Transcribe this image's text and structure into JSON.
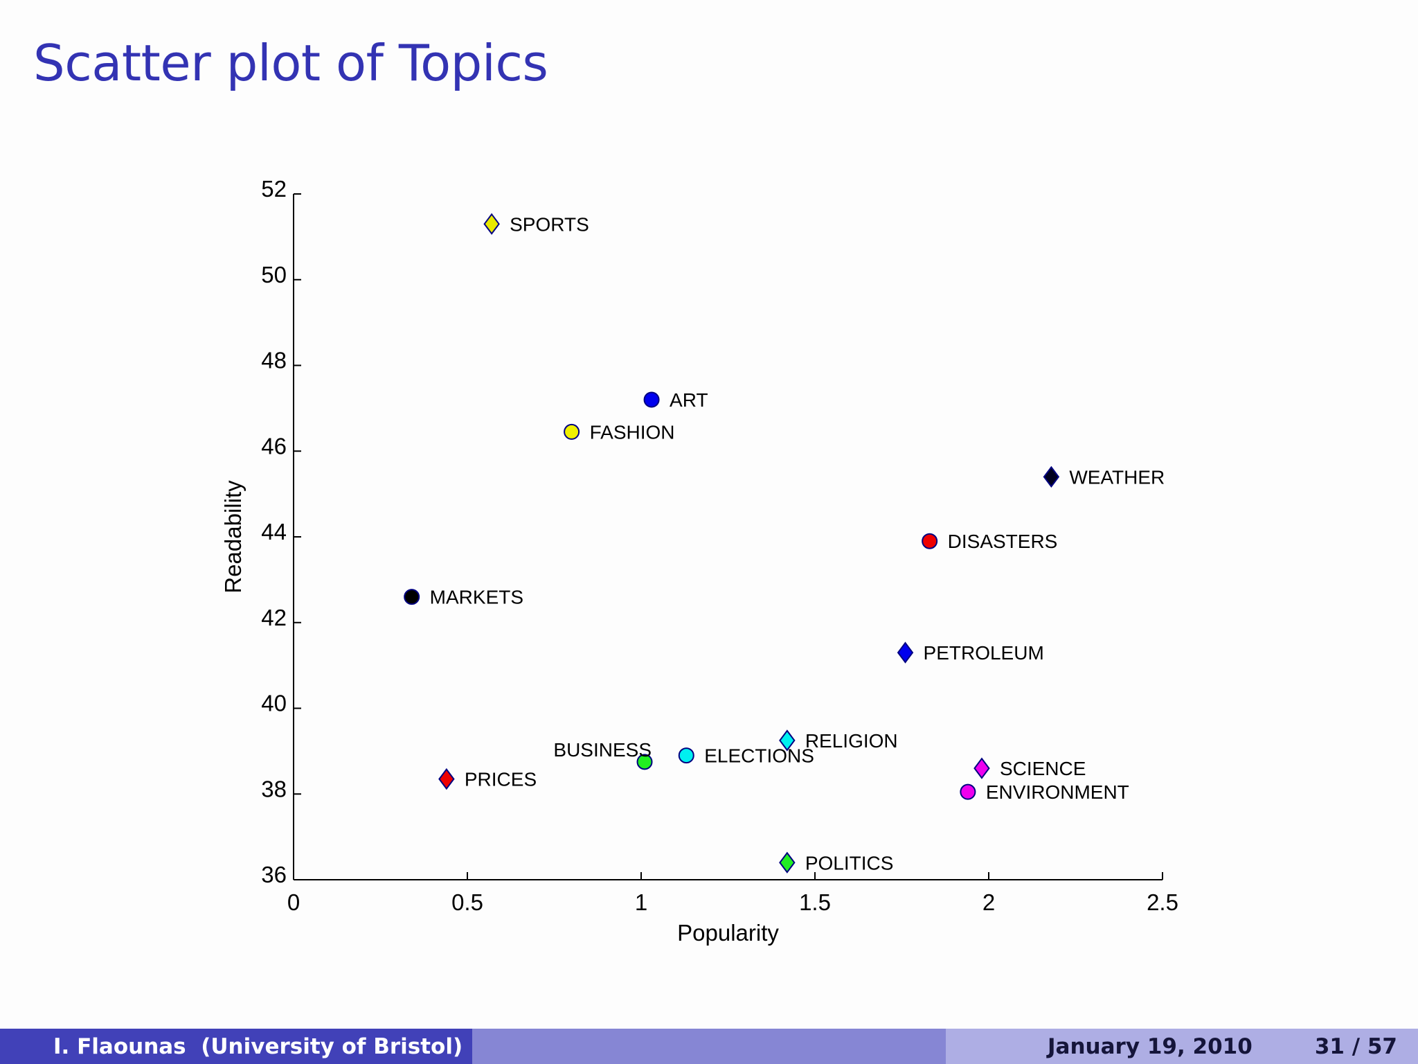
{
  "slide": {
    "title": "Scatter plot of Topics"
  },
  "footer": {
    "author": "I. Flaounas  (University of Bristol)",
    "date": "January 19, 2010",
    "page": "31 / 57"
  },
  "chart_data": {
    "type": "scatter",
    "title": "",
    "xlabel": "Popularity",
    "ylabel": "Readability",
    "xlim": [
      0,
      2.5
    ],
    "ylim": [
      36,
      52
    ],
    "xticks": [
      0,
      0.5,
      1,
      1.5,
      2,
      2.5
    ],
    "xtick_labels": [
      "0",
      "0.5",
      "1",
      "1.5",
      "2",
      "2.5"
    ],
    "yticks": [
      36,
      38,
      40,
      42,
      44,
      46,
      48,
      50,
      52
    ],
    "ytick_labels": [
      "36",
      "38",
      "40",
      "42",
      "44",
      "46",
      "48",
      "50",
      "52"
    ],
    "grid": false,
    "points": [
      {
        "label": "SPORTS",
        "x": 0.57,
        "y": 51.3,
        "marker": "diamond",
        "color": "#e8e800",
        "label_side": "right"
      },
      {
        "label": "ART",
        "x": 1.03,
        "y": 47.2,
        "marker": "circle",
        "color": "#0000ee",
        "label_side": "right"
      },
      {
        "label": "FASHION",
        "x": 0.8,
        "y": 46.45,
        "marker": "circle",
        "color": "#f0f000",
        "label_side": "right"
      },
      {
        "label": "WEATHER",
        "x": 2.18,
        "y": 45.4,
        "marker": "diamond",
        "color": "#000020",
        "label_side": "right"
      },
      {
        "label": "DISASTERS",
        "x": 1.83,
        "y": 43.9,
        "marker": "circle",
        "color": "#ee0000",
        "label_side": "right"
      },
      {
        "label": "MARKETS",
        "x": 0.34,
        "y": 42.6,
        "marker": "circle",
        "color": "#000000",
        "label_side": "right"
      },
      {
        "label": "PETROLEUM",
        "x": 1.76,
        "y": 41.3,
        "marker": "diamond",
        "color": "#0000ee",
        "label_side": "right"
      },
      {
        "label": "RELIGION",
        "x": 1.42,
        "y": 39.25,
        "marker": "diamond",
        "color": "#00f0f0",
        "label_side": "right"
      },
      {
        "label": "ELECTIONS",
        "x": 1.13,
        "y": 38.9,
        "marker": "circle",
        "color": "#00f0f0",
        "label_side": "right"
      },
      {
        "label": "BUSINESS",
        "x": 1.01,
        "y": 38.75,
        "marker": "circle",
        "color": "#22ee22",
        "label_side": "left"
      },
      {
        "label": "SCIENCE",
        "x": 1.98,
        "y": 38.6,
        "marker": "diamond",
        "color": "#ee00ee",
        "label_side": "right"
      },
      {
        "label": "PRICES",
        "x": 0.44,
        "y": 38.35,
        "marker": "diamond",
        "color": "#ee0000",
        "label_side": "right"
      },
      {
        "label": "ENVIRONMENT",
        "x": 1.94,
        "y": 38.05,
        "marker": "circle",
        "color": "#ee00ee",
        "label_side": "right"
      },
      {
        "label": "POLITICS",
        "x": 1.42,
        "y": 36.4,
        "marker": "diamond",
        "color": "#22ee22",
        "label_side": "right"
      }
    ]
  }
}
